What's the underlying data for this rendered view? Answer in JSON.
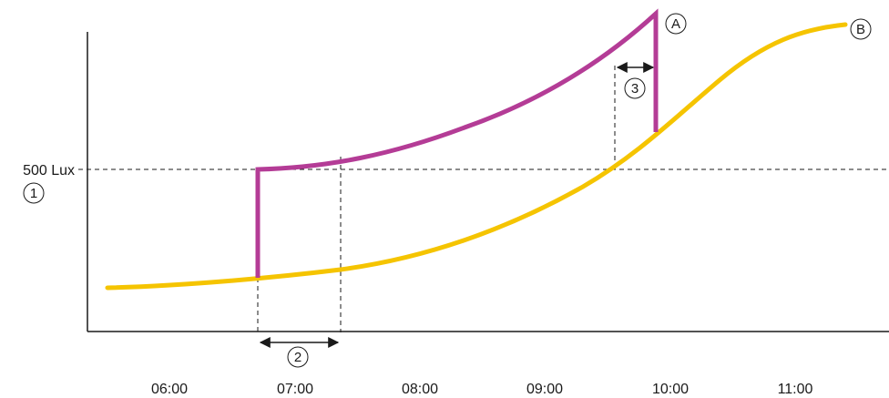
{
  "diagram": {
    "threshold_label": "500 Lux",
    "time_ticks": [
      "06:00",
      "07:00",
      "08:00",
      "09:00",
      "10:00",
      "11:00"
    ],
    "markers": {
      "threshold": "1",
      "delay_on": "2",
      "delay_off": "3",
      "curve_a": "A",
      "curve_b": "B"
    },
    "colors": {
      "curve_a": "#b43c96",
      "curve_b": "#f5c400",
      "axis": "#1a1a1a",
      "guide": "#1a1a1a"
    }
  }
}
